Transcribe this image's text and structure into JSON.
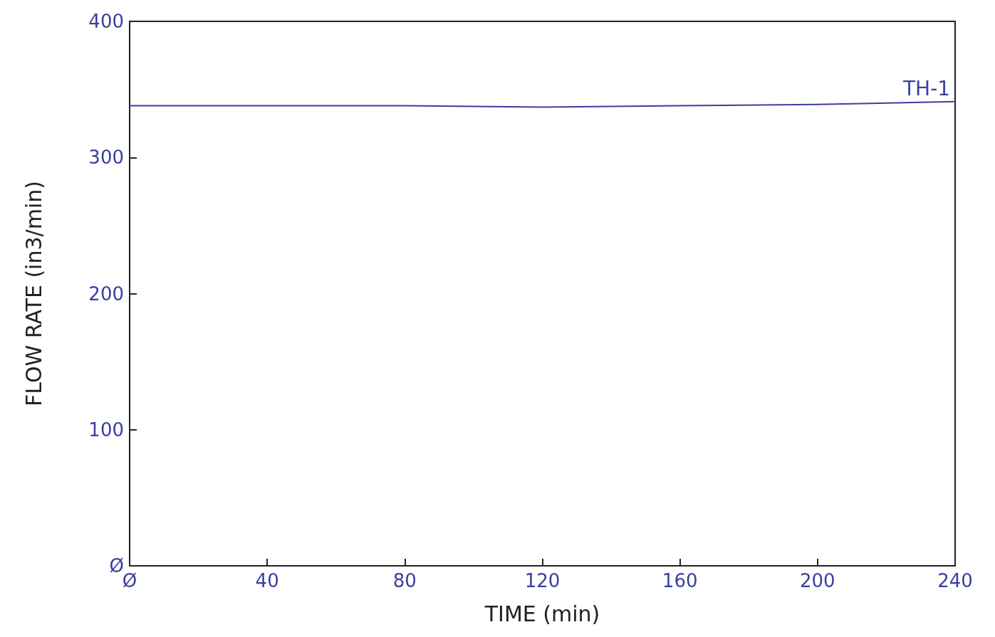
{
  "chart_data": {
    "type": "line",
    "xlabel": "TIME (min)",
    "ylabel": "FLOW RATE (in3/min)",
    "x": [
      0,
      40,
      80,
      120,
      160,
      200,
      240
    ],
    "series": [
      {
        "name": "TH-1",
        "color": "#3a3fa0",
        "values": [
          338,
          338,
          338,
          337,
          338,
          339,
          341
        ]
      }
    ],
    "xlim": [
      0,
      240
    ],
    "ylim": [
      0,
      400
    ],
    "xticks": [
      {
        "value": 0,
        "label": "Ø"
      },
      40,
      80,
      120,
      160,
      200,
      240
    ],
    "yticks": [
      {
        "value": 0,
        "label": "Ø"
      },
      100,
      200,
      300,
      400
    ]
  }
}
